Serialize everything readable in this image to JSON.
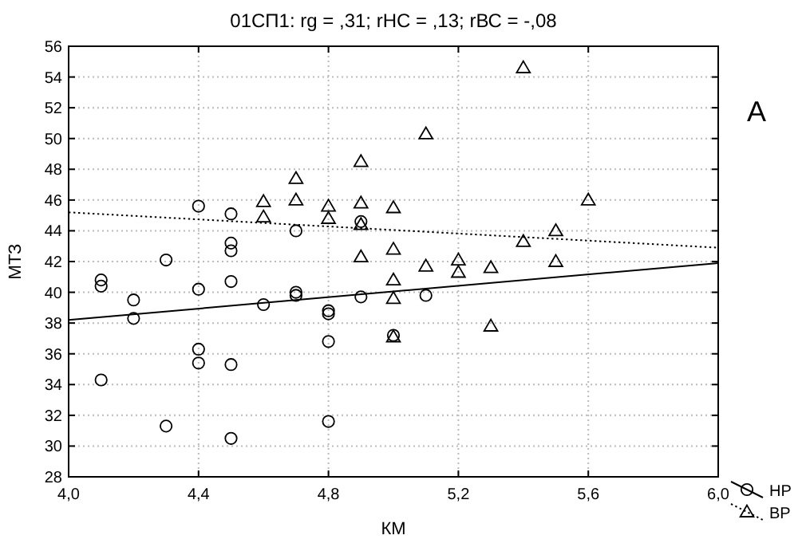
{
  "chart_data": {
    "type": "scatter",
    "title": "01СП1: rg = ,31; rНС = ,13; rВС = -,08",
    "xlabel": "КМ",
    "ylabel": "МТЗ",
    "annotations": [
      "А"
    ],
    "xlim": [
      4.0,
      6.0
    ],
    "xticks": [
      {
        "value": 4.0,
        "label": "4,0"
      },
      {
        "value": 4.4,
        "label": "4,4"
      },
      {
        "value": 4.8,
        "label": "4,8"
      },
      {
        "value": 5.2,
        "label": "5,2"
      },
      {
        "value": 5.6,
        "label": "5,6"
      },
      {
        "value": 6.0,
        "label": "6,0"
      }
    ],
    "ylim": [
      28,
      56
    ],
    "yticks": [
      28,
      30,
      32,
      34,
      36,
      38,
      40,
      42,
      44,
      46,
      48,
      50,
      52,
      54,
      56
    ],
    "grid": true,
    "legend": "bottom right",
    "series": [
      {
        "name": "НР",
        "marker": "circle",
        "color": "#000000",
        "x": [
          4.1,
          4.1,
          4.1,
          4.2,
          4.2,
          4.3,
          4.3,
          4.4,
          4.4,
          4.4,
          4.4,
          4.5,
          4.5,
          4.5,
          4.5,
          4.5,
          4.5,
          4.6,
          4.7,
          4.7,
          4.7,
          4.8,
          4.8,
          4.8,
          4.8,
          4.9,
          4.9,
          5.0,
          5.1
        ],
        "values": [
          40.8,
          40.4,
          34.3,
          39.5,
          38.3,
          42.1,
          31.3,
          45.6,
          40.2,
          36.3,
          35.4,
          45.1,
          43.2,
          42.7,
          40.7,
          35.3,
          30.5,
          39.2,
          44.0,
          40.0,
          39.8,
          38.8,
          38.6,
          36.8,
          31.6,
          39.7,
          44.6,
          37.2,
          39.8
        ]
      },
      {
        "name": "ВР",
        "marker": "triangle",
        "color": "#000000",
        "x": [
          4.6,
          4.6,
          4.7,
          4.7,
          4.8,
          4.8,
          4.9,
          4.9,
          4.9,
          4.9,
          5.0,
          5.0,
          5.0,
          5.0,
          5.0,
          5.1,
          5.1,
          5.2,
          5.2,
          5.3,
          5.3,
          5.4,
          5.4,
          5.5,
          5.5,
          5.6
        ],
        "values": [
          45.9,
          44.9,
          47.4,
          46.0,
          45.6,
          44.8,
          48.5,
          45.8,
          44.4,
          42.3,
          45.5,
          42.8,
          40.8,
          39.6,
          37.1,
          50.3,
          41.7,
          42.1,
          41.3,
          41.6,
          37.8,
          54.6,
          43.3,
          44.0,
          42.0,
          46.0
        ]
      },
      {
        "type": "line",
        "line_style": "solid",
        "color": "#000000",
        "x": [
          4.0,
          6.0
        ],
        "values": [
          38.2,
          41.9
        ]
      },
      {
        "type": "line",
        "line_style": "dotted",
        "color": "#000000",
        "x": [
          4.0,
          6.0
        ],
        "values": [
          45.2,
          42.9
        ]
      }
    ]
  }
}
